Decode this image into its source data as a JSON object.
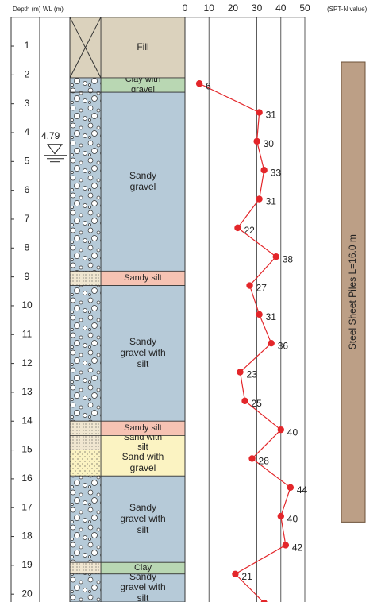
{
  "chart_data": {
    "type": "line",
    "depth_label": "Depth (m)",
    "wl_label": "WL (m)",
    "xlabel": "(SPT-N value)",
    "xlim": [
      0,
      50
    ],
    "xticks": [
      0,
      10,
      20,
      30,
      40,
      50
    ],
    "ylim": [
      0,
      20.27
    ],
    "yticks": [
      1,
      2,
      3,
      4,
      5,
      6,
      7,
      8,
      9,
      10,
      11,
      12,
      13,
      14,
      15,
      16,
      17,
      18,
      19,
      20
    ],
    "series": [
      {
        "color": "#e3262a",
        "depths": [
          2.3,
          3.3,
          4.3,
          5.3,
          6.3,
          7.3,
          8.3,
          9.3,
          10.3,
          11.3,
          12.3,
          13.3,
          14.3,
          15.3,
          16.3,
          17.3,
          18.3,
          19.3,
          20.3
        ],
        "values": [
          6,
          31,
          30,
          33,
          31,
          22,
          38,
          27,
          31,
          36,
          23,
          25,
          40,
          28,
          44,
          40,
          42,
          21,
          33
        ]
      }
    ],
    "layers": [
      {
        "name": "Fill",
        "top": 0,
        "bottom": 2.1,
        "color": "#dbd2bd",
        "pattern": "cross"
      },
      {
        "name": "Clay with gravel",
        "top": 2.1,
        "bottom": 2.6,
        "color": "#b9d7b3",
        "pattern": "gravel"
      },
      {
        "name": "Sandy gravel",
        "top": 2.6,
        "bottom": 8.8,
        "color": "#b6cad8",
        "pattern": "gravel"
      },
      {
        "name": "Sandy silt",
        "top": 8.8,
        "bottom": 9.3,
        "color": "#f6c3b3",
        "pattern": "silt"
      },
      {
        "name": "Sandy gravel with silt",
        "top": 9.3,
        "bottom": 14.0,
        "color": "#b6cad8",
        "pattern": "gravel"
      },
      {
        "name": "Sandy silt",
        "top": 14.0,
        "bottom": 14.5,
        "color": "#f6c3b3",
        "pattern": "silt"
      },
      {
        "name": "Sand with silt",
        "top": 14.5,
        "bottom": 15.0,
        "color": "#fbf3c2",
        "pattern": "silt"
      },
      {
        "name": "Sand with gravel",
        "top": 15.0,
        "bottom": 15.9,
        "color": "#fbf3c2",
        "pattern": "sand"
      },
      {
        "name": "Sandy gravel with silt",
        "top": 15.9,
        "bottom": 18.9,
        "color": "#b6cad8",
        "pattern": "gravel"
      },
      {
        "name": "Clay",
        "top": 18.9,
        "bottom": 19.3,
        "color": "#b9d7b3",
        "pattern": "silt"
      },
      {
        "name": "Sandy gravel with silt",
        "top": 19.3,
        "bottom": 20.27,
        "color": "#b6cad8",
        "pattern": "gravel"
      }
    ],
    "water_level": 4.79,
    "piles": {
      "label": "Steel Sheet Piles L=16.0 m",
      "top": 1.55,
      "bottom": 17.5,
      "color": "#bc9f86"
    }
  }
}
